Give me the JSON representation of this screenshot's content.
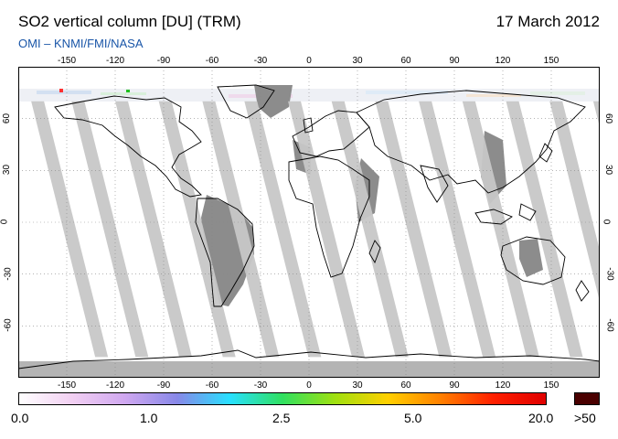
{
  "header": {
    "title": "SO2 vertical column [DU] (TRM)",
    "date": "17 March 2012",
    "credit": "OMI  –  KNMI/FMI/NASA"
  },
  "map": {
    "projection": "equirectangular",
    "lon_range": [
      -180,
      180
    ],
    "lat_range": [
      -90,
      90
    ],
    "lon_ticks": [
      "-150",
      "-120",
      "-90",
      "-60",
      "-30",
      "0",
      "30",
      "60",
      "90",
      "120",
      "150"
    ],
    "lat_ticks": [
      "60",
      "30",
      "0",
      "-30",
      "-60"
    ],
    "grid": true,
    "background_color": "#ffffff",
    "missing_swath_color": "#c8c8c8",
    "land_under_gap_color": "#8c8c8c",
    "coastline_color": "#000000"
  },
  "colorbar": {
    "labels": [
      "0.0",
      "1.0",
      "2.5",
      "5.0",
      "20.0",
      ">50"
    ],
    "stops": [
      "#ffffff",
      "#f2d0f2",
      "#d0a8f0",
      "#8888e8",
      "#28e0ff",
      "#30e060",
      "#a0e010",
      "#ffd000",
      "#ff8000",
      "#ff2000",
      "#e00000"
    ],
    "overflow_color": "#4a0000"
  }
}
